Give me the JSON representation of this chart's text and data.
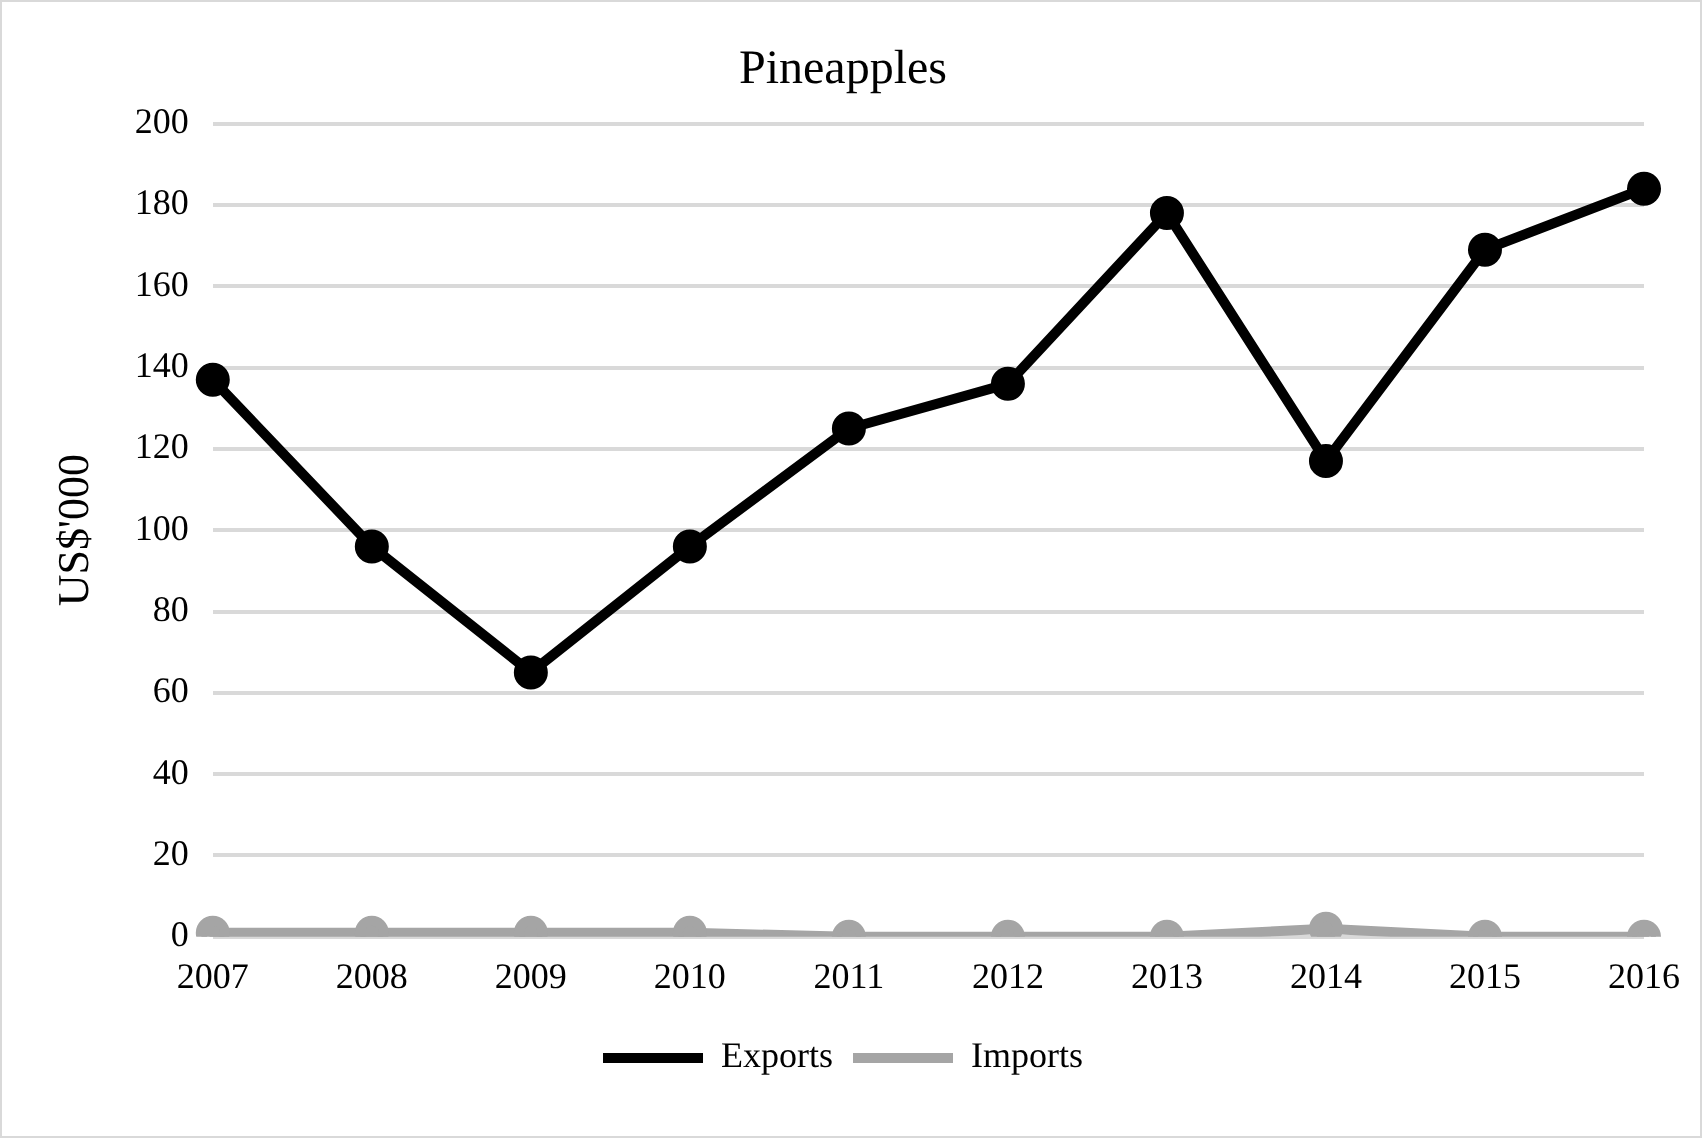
{
  "chart_data": {
    "type": "line",
    "title": "Pineapples",
    "ylabel": "US$'000",
    "categories": [
      "2007",
      "2008",
      "2009",
      "2010",
      "2011",
      "2012",
      "2013",
      "2014",
      "2015",
      "2016"
    ],
    "series": [
      {
        "name": "Exports",
        "color": "#000000",
        "values": [
          137,
          96,
          65,
          96,
          125,
          136,
          178,
          117,
          169,
          184
        ]
      },
      {
        "name": "Imports",
        "color": "#a5a5a5",
        "values": [
          1,
          1,
          1,
          1,
          0,
          0,
          0,
          2,
          0,
          0
        ]
      }
    ],
    "ylim": [
      0,
      200
    ],
    "yticks": [
      0,
      20,
      40,
      60,
      80,
      100,
      120,
      140,
      160,
      180,
      200
    ],
    "grid": "y",
    "legend": "bottom",
    "marker": "circle",
    "line_style": "solid"
  }
}
